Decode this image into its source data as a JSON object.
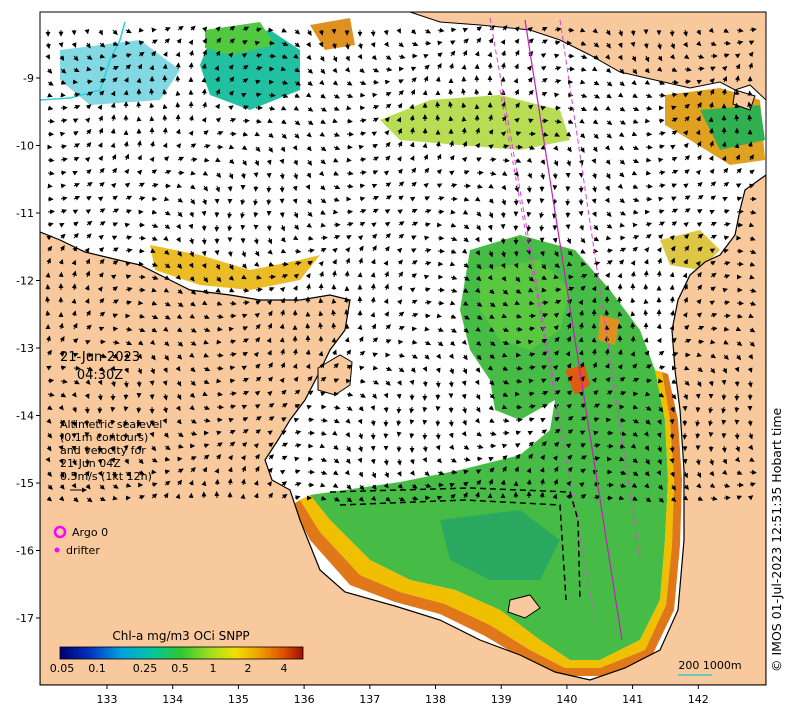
{
  "map": {
    "date_line1": "21-Jun-2023",
    "date_line2": "04:30Z",
    "info_lines": [
      "Altimetric sealevel",
      "(0.1m contours)",
      "and velocity for",
      "21-Jun 04Z",
      "0.5m/s (1kt 12h)"
    ],
    "legend_argo": "Argo 0",
    "legend_drifter": "drifter",
    "colorbar_title": "Chl-a mg/m3 OCi SNPP",
    "colorbar_ticks": [
      "0.05",
      "0.1",
      "0.25",
      "0.5",
      "1",
      "2",
      "4"
    ],
    "scale_label": "200  1000m",
    "credit": "© IMOS 01-Jul-2023 12:51:35 Hobart time",
    "lon_ticks": [
      "133",
      "134",
      "135",
      "136",
      "137",
      "138",
      "139",
      "140",
      "141",
      "142"
    ],
    "lat_ticks": [
      "-9",
      "-10",
      "-11",
      "-12",
      "-13",
      "-14",
      "-15",
      "-16",
      "-17"
    ],
    "colors": {
      "land": "#f8c99c",
      "coast": "#000000",
      "ocean": "#ffffff",
      "track": "#e040e0",
      "argo": "#ff00ff",
      "scale_bar": "#40c8c8"
    }
  }
}
